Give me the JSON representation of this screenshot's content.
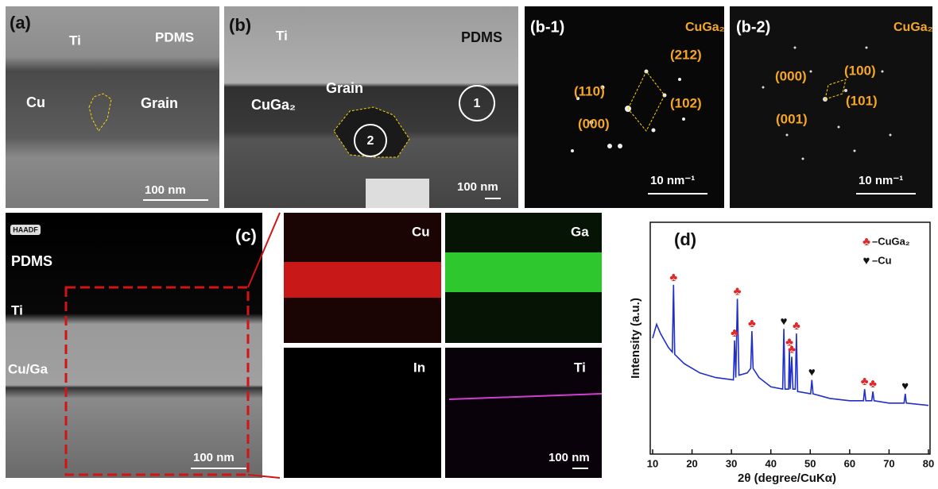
{
  "panel_a": {
    "label": "(a)",
    "ti": "Ti",
    "pdms": "PDMS",
    "cu": "Cu",
    "grain": "Grain",
    "scale": "100 nm"
  },
  "panel_b": {
    "label": "(b)",
    "ti": "Ti",
    "pdms": "PDMS",
    "cuga2": "CuGa₂",
    "grain": "Grain",
    "circle_1": "1",
    "circle_2": "2",
    "scale": "100 nm"
  },
  "panel_b1": {
    "label": "(b-1)",
    "phase": "CuGa₂",
    "spots": [
      "(110)",
      "(212)",
      "(102)",
      "(000)"
    ],
    "scale": "10 nm⁻¹"
  },
  "panel_b2": {
    "label": "(b-2)",
    "phase": "CuGa₂",
    "spots": [
      "(000)",
      "(100)",
      "(101)",
      "(001)"
    ],
    "scale": "10 nm⁻¹"
  },
  "panel_c": {
    "label": "(c)",
    "mode": "HAADF",
    "pdms": "PDMS",
    "ti": "Ti",
    "cuga": "Cu/Ga",
    "scale": "100 nm",
    "maps": [
      "Cu",
      "Ga",
      "In",
      "Ti"
    ],
    "map_scale": "100 nm"
  },
  "chart_data": {
    "type": "line",
    "label": "(d)",
    "xlabel": "2θ (degree/CuKα)",
    "ylabel": "Intensity (a.u.)",
    "xlim": [
      10,
      80
    ],
    "xticks": [
      10,
      20,
      30,
      40,
      50,
      60,
      70,
      80
    ],
    "ylim": [
      0,
      100
    ],
    "x": [
      10,
      11,
      12,
      14,
      15.0,
      15.3,
      15.6,
      18,
      22,
      26,
      30.5,
      30.8,
      31.1,
      31.5,
      31.9,
      34,
      34.9,
      35.2,
      35.5,
      37,
      40,
      43.0,
      43.3,
      43.6,
      44.5,
      44.7,
      44.9,
      45.3,
      45.6,
      46.2,
      46.5,
      46.8,
      50.1,
      50.4,
      50.7,
      55,
      60,
      63.5,
      63.8,
      64.1,
      65.6,
      65.9,
      66.2,
      70,
      73.8,
      74.1,
      74.4,
      80
    ],
    "series": [
      {
        "color": "#1f2fc8",
        "values": [
          50,
          56,
          52,
          46,
          44,
          73,
          43,
          39,
          35,
          33,
          32,
          49,
          33,
          67,
          34,
          35,
          37,
          53,
          37,
          33,
          29,
          28,
          54,
          28,
          28,
          45,
          28,
          42,
          28,
          28,
          52,
          27,
          26,
          32,
          26,
          24,
          23,
          23,
          28,
          23,
          23,
          27,
          23,
          22,
          22,
          26,
          22,
          21
        ]
      }
    ],
    "peak_markers": [
      {
        "name": "–CuGa₂",
        "symbol": "♣",
        "color": "#e02828",
        "x": [
          15.3,
          30.8,
          31.5,
          35.2,
          44.7,
          45.3,
          46.5,
          63.8,
          65.9
        ]
      },
      {
        "name": "–Cu",
        "symbol": "♥",
        "color": "#111111",
        "x": [
          43.3,
          50.4,
          74.1
        ]
      }
    ]
  }
}
